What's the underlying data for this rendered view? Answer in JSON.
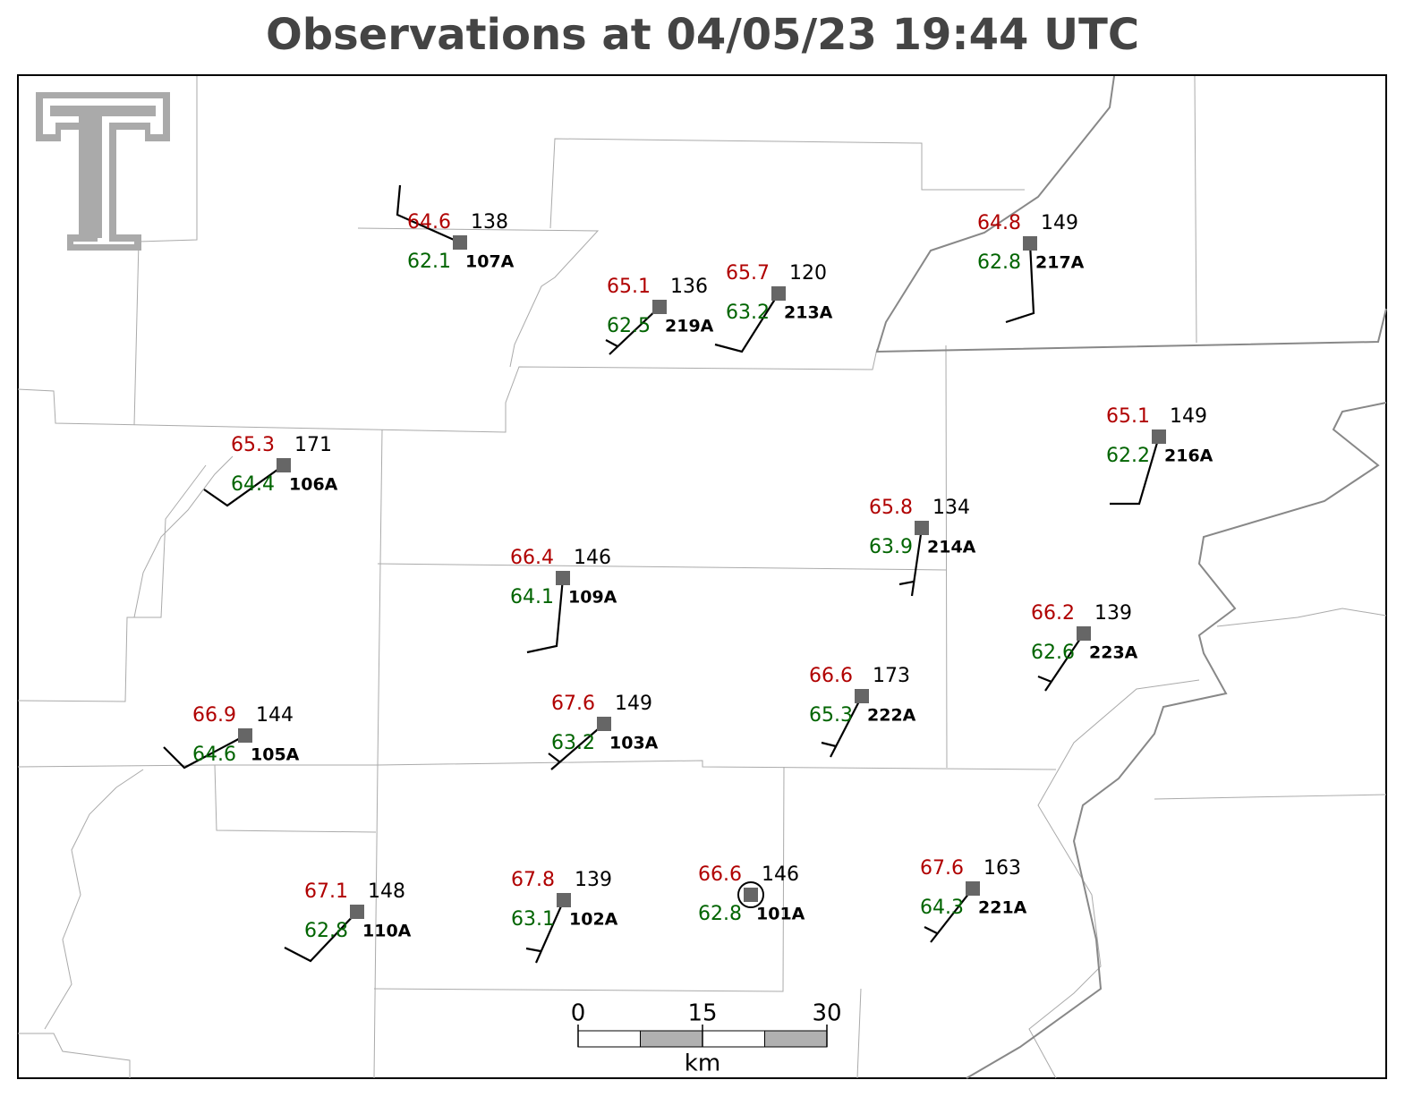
{
  "title": "Observations at 04/05/23 19:44 UTC",
  "stations": [
    {
      "id": "107A",
      "temperature": 64.6,
      "dewpoint": 62.1,
      "pressure": 138
    },
    {
      "id": "219A",
      "temperature": 65.1,
      "dewpoint": 62.5,
      "pressure": 136
    },
    {
      "id": "213A",
      "temperature": 65.7,
      "dewpoint": 63.2,
      "pressure": 120
    },
    {
      "id": "217A",
      "temperature": 64.8,
      "dewpoint": 62.8,
      "pressure": 149
    },
    {
      "id": "106A",
      "temperature": 65.3,
      "dewpoint": 64.4,
      "pressure": 171
    },
    {
      "id": "216A",
      "temperature": 65.1,
      "dewpoint": 62.2,
      "pressure": 149
    },
    {
      "id": "214A",
      "temperature": 65.8,
      "dewpoint": 63.9,
      "pressure": 134
    },
    {
      "id": "109A",
      "temperature": 66.4,
      "dewpoint": 64.1,
      "pressure": 146
    },
    {
      "id": "223A",
      "temperature": 66.2,
      "dewpoint": 62.6,
      "pressure": 139
    },
    {
      "id": "222A",
      "temperature": 66.6,
      "dewpoint": 65.3,
      "pressure": 173
    },
    {
      "id": "105A",
      "temperature": 66.9,
      "dewpoint": 64.6,
      "pressure": 144
    },
    {
      "id": "103A",
      "temperature": 67.6,
      "dewpoint": 63.2,
      "pressure": 149
    },
    {
      "id": "110A",
      "temperature": 67.1,
      "dewpoint": 62.8,
      "pressure": 148
    },
    {
      "id": "102A",
      "temperature": 67.8,
      "dewpoint": 63.1,
      "pressure": 139
    },
    {
      "id": "101A",
      "temperature": 66.6,
      "dewpoint": 62.8,
      "pressure": 146
    },
    {
      "id": "221A",
      "temperature": 67.6,
      "dewpoint": 64.3,
      "pressure": 163
    }
  ],
  "scale_bar": {
    "ticks": [
      0,
      15,
      30
    ],
    "unit": "km"
  }
}
